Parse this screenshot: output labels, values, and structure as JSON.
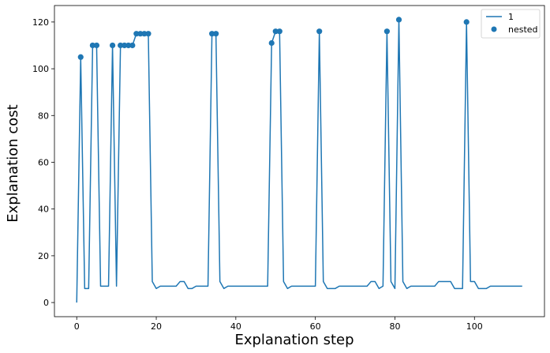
{
  "chart_data": {
    "type": "line",
    "title": "",
    "xlabel": "Explanation step",
    "ylabel": "Explanation cost",
    "xlim": [
      -5.6,
      117.6
    ],
    "ylim": [
      -6.05,
      127.05
    ],
    "xticks": [
      0,
      20,
      40,
      60,
      80,
      100
    ],
    "yticks": [
      0,
      20,
      40,
      60,
      80,
      100,
      120
    ],
    "grid": false,
    "legend_position": "top-right",
    "colors": {
      "series": "#1f77b4",
      "axis": "#000000",
      "legend_border": "#cccccc"
    },
    "series": [
      {
        "name": "1",
        "kind": "line",
        "x": [
          0,
          1,
          2,
          3,
          4,
          5,
          6,
          7,
          8,
          9,
          10,
          11,
          12,
          13,
          14,
          15,
          16,
          17,
          18,
          19,
          20,
          21,
          22,
          23,
          24,
          25,
          26,
          27,
          28,
          29,
          30,
          31,
          32,
          33,
          34,
          35,
          36,
          37,
          38,
          39,
          40,
          41,
          42,
          43,
          44,
          45,
          46,
          47,
          48,
          49,
          50,
          51,
          52,
          53,
          54,
          55,
          56,
          57,
          58,
          59,
          60,
          61,
          62,
          63,
          64,
          65,
          66,
          67,
          68,
          69,
          70,
          71,
          72,
          73,
          74,
          75,
          76,
          77,
          78,
          79,
          80,
          81,
          82,
          83,
          84,
          85,
          86,
          87,
          88,
          89,
          90,
          91,
          92,
          93,
          94,
          95,
          96,
          97,
          98,
          99,
          100,
          101,
          102,
          103,
          104,
          105,
          106,
          107,
          108,
          109,
          110,
          111,
          112
        ],
        "y": [
          0,
          105,
          6,
          6,
          110,
          110,
          7,
          7,
          7,
          110,
          7,
          110,
          110,
          110,
          110,
          115,
          115,
          115,
          115,
          9,
          6,
          7,
          7,
          7,
          7,
          7,
          9,
          9,
          6,
          6,
          7,
          7,
          7,
          7,
          115,
          115,
          9,
          6,
          7,
          7,
          7,
          7,
          7,
          7,
          7,
          7,
          7,
          7,
          7,
          111,
          116,
          116,
          9,
          6,
          7,
          7,
          7,
          7,
          7,
          7,
          7,
          116,
          9,
          6,
          6,
          6,
          7,
          7,
          7,
          7,
          7,
          7,
          7,
          7,
          9,
          9,
          6,
          7,
          116,
          9,
          6,
          121,
          9,
          6,
          7,
          7,
          7,
          7,
          7,
          7,
          7,
          9,
          9,
          9,
          9,
          6,
          6,
          6,
          120,
          9,
          9,
          6,
          6,
          6,
          7,
          7,
          7,
          7,
          7,
          7,
          7,
          7,
          7
        ]
      },
      {
        "name": "nested",
        "kind": "scatter",
        "x": [
          1,
          4,
          5,
          9,
          11,
          12,
          13,
          14,
          15,
          16,
          17,
          18,
          34,
          35,
          49,
          50,
          51,
          61,
          78,
          81,
          98
        ],
        "y": [
          105,
          110,
          110,
          110,
          110,
          110,
          110,
          110,
          115,
          115,
          115,
          115,
          115,
          115,
          111,
          116,
          116,
          116,
          116,
          121,
          120
        ]
      }
    ]
  }
}
